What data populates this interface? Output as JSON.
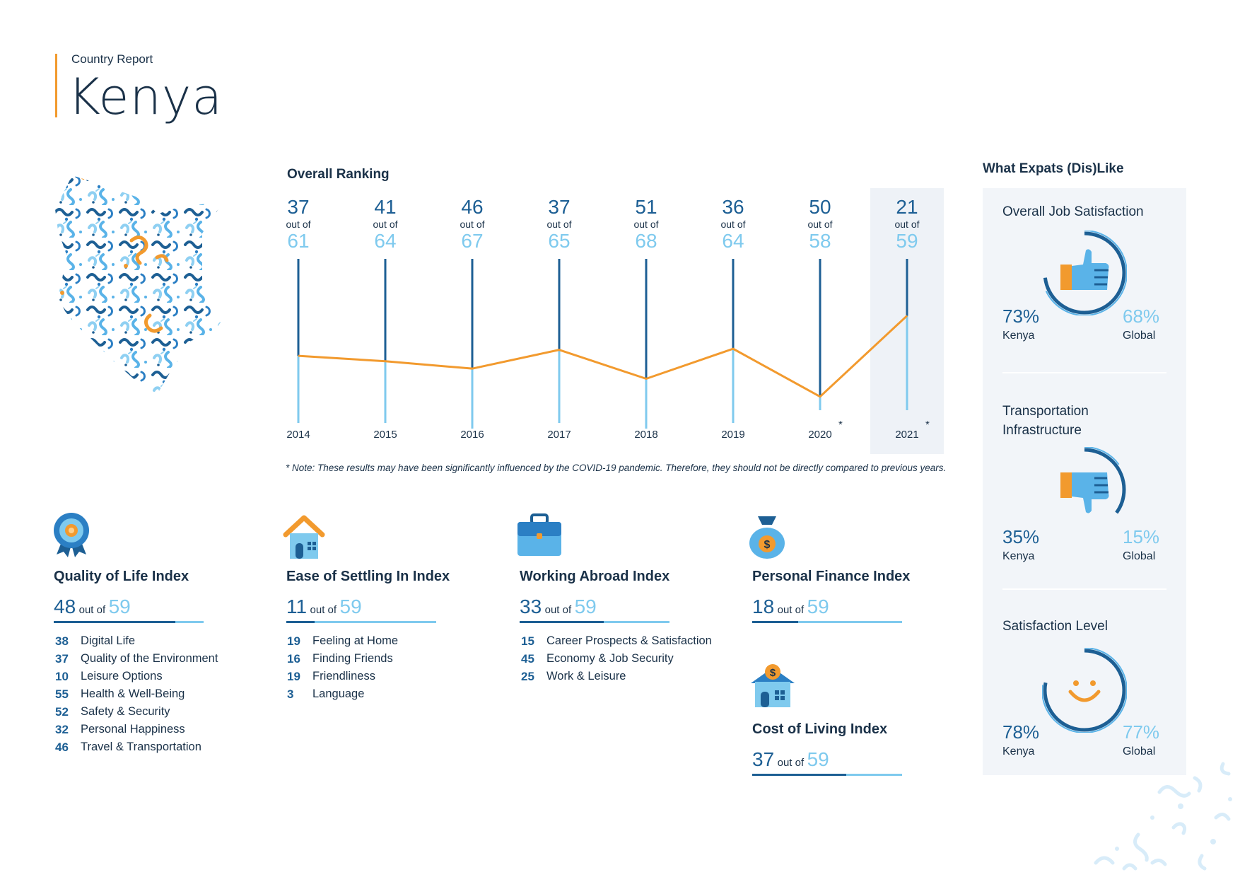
{
  "header": {
    "report_label": "Country Report",
    "country": "Kenya"
  },
  "ranking": {
    "title": "Overall Ranking",
    "out_of_label": "out of",
    "points": [
      {
        "year": "2014",
        "rank": 37,
        "total": 61
      },
      {
        "year": "2015",
        "rank": 41,
        "total": 64
      },
      {
        "year": "2016",
        "rank": 46,
        "total": 67
      },
      {
        "year": "2017",
        "rank": 37,
        "total": 65
      },
      {
        "year": "2018",
        "rank": 51,
        "total": 68
      },
      {
        "year": "2019",
        "rank": 36,
        "total": 64
      },
      {
        "year": "2020",
        "rank": 50,
        "total": 58
      },
      {
        "year": "2021",
        "rank": 21,
        "total": 59
      }
    ],
    "asterisk": "*",
    "note": "* Note: These results may have been significantly influenced by the COVID-19 pandemic. Therefore, they should not be directly compared to previous years.",
    "colors": {
      "dark": "#1d5f94",
      "light": "#7fcaee",
      "line": "#f29a2e",
      "highlight": "#eef2f7"
    }
  },
  "indices": {
    "out_of_label": "out of",
    "quality_of_life": {
      "title": "Quality of Life Index",
      "score": 48,
      "total": 59,
      "items": [
        {
          "rank": 38,
          "label": "Digital Life"
        },
        {
          "rank": 37,
          "label": "Quality of the Environment"
        },
        {
          "rank": 10,
          "label": "Leisure Options"
        },
        {
          "rank": 55,
          "label": "Health & Well-Being"
        },
        {
          "rank": 52,
          "label": "Safety & Security"
        },
        {
          "rank": 32,
          "label": "Personal Happiness"
        },
        {
          "rank": 46,
          "label": "Travel & Transportation"
        }
      ]
    },
    "ease_of_settling": {
      "title": "Ease of Settling In Index",
      "score": 11,
      "total": 59,
      "items": [
        {
          "rank": 19,
          "label": "Feeling at Home"
        },
        {
          "rank": 16,
          "label": "Finding Friends"
        },
        {
          "rank": 19,
          "label": "Friendliness"
        },
        {
          "rank": 3,
          "label": "Language"
        }
      ]
    },
    "working_abroad": {
      "title": "Working Abroad Index",
      "score": 33,
      "total": 59,
      "items": [
        {
          "rank": 15,
          "label": "Career Prospects & Satisfaction"
        },
        {
          "rank": 45,
          "label": "Economy & Job Security"
        },
        {
          "rank": 25,
          "label": "Work & Leisure"
        }
      ]
    },
    "personal_finance": {
      "title": "Personal Finance Index",
      "score": 18,
      "total": 59
    },
    "cost_of_living": {
      "title": "Cost of Living Index",
      "score": 37,
      "total": 59
    }
  },
  "expats": {
    "title": "What Expats (Dis)Like",
    "kenya_label": "Kenya",
    "global_label": "Global",
    "items": [
      {
        "title": "Overall Job Satisfaction",
        "icon": "thumbs-up-icon",
        "kenya": "73%",
        "global": "68%",
        "kenya_value": 0.73,
        "global_value": 0.68
      },
      {
        "title": "Transportation Infrastructure",
        "icon": "thumbs-down-icon",
        "kenya": "35%",
        "global": "15%",
        "kenya_value": 0.35,
        "global_value": 0.15
      },
      {
        "title": "Satisfaction Level",
        "icon": "smiley-icon",
        "kenya": "78%",
        "global": "77%",
        "kenya_value": 0.78,
        "global_value": 0.77
      }
    ]
  }
}
